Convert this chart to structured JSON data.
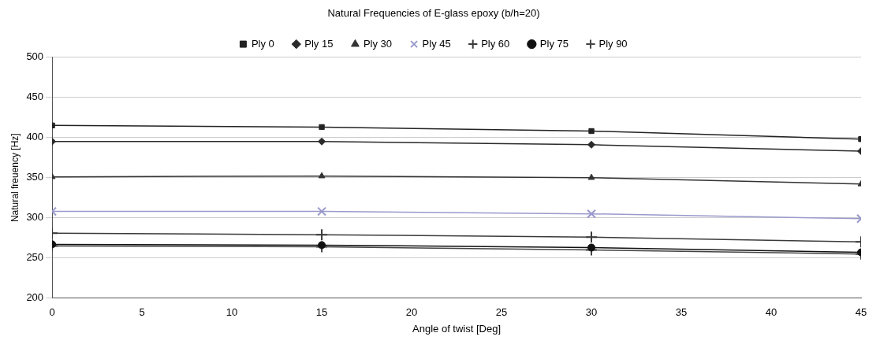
{
  "chart_data": {
    "type": "line",
    "title": "Natural Frequencies of E-glass epoxy (b/h=20)",
    "xlabel": "Angle of twist [Deg]",
    "ylabel": "Natural freuency [Hz]",
    "x": [
      0,
      15,
      30,
      45
    ],
    "xlim": [
      0,
      45
    ],
    "xticks": [
      0,
      5,
      10,
      15,
      20,
      25,
      30,
      35,
      40,
      45
    ],
    "ylim": [
      200,
      500
    ],
    "yticks": [
      200,
      250,
      300,
      350,
      400,
      450,
      500
    ],
    "grid": "y",
    "legend": "top",
    "line_style": "solid",
    "series": [
      {
        "name": "Ply 0",
        "color": "#222222",
        "marker": "square",
        "values": [
          415,
          413,
          408,
          398
        ]
      },
      {
        "name": "Ply 15",
        "color": "#2a2a2a",
        "marker": "diamond",
        "values": [
          395,
          395,
          391,
          383
        ]
      },
      {
        "name": "Ply 30",
        "color": "#333333",
        "marker": "triangle",
        "values": [
          351,
          352,
          350,
          342
        ]
      },
      {
        "name": "Ply 45",
        "color": "#9999cc",
        "marker": "x",
        "values": [
          308,
          308,
          305,
          299
        ]
      },
      {
        "name": "Ply 60",
        "color": "#3a3a3a",
        "marker": "cross",
        "values": [
          281,
          279,
          276,
          270
        ]
      },
      {
        "name": "Ply 75",
        "color": "#111111",
        "marker": "circle",
        "values": [
          267,
          266,
          263,
          257
        ]
      },
      {
        "name": "Ply 90",
        "color": "#444444",
        "marker": "cross",
        "values": [
          265,
          264,
          260,
          255
        ]
      }
    ]
  }
}
